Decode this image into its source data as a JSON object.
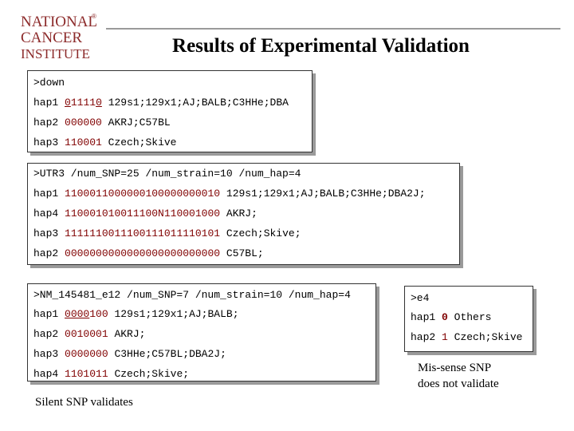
{
  "logo": {
    "lines": [
      "NATIONAL",
      "CANCER",
      "INSTITUTE"
    ],
    "registered": "®"
  },
  "title": "Results of Experimental Validation",
  "box1": {
    "header": ">down",
    "rows": [
      {
        "hap": "hap1",
        "pre": "",
        "under": "0",
        "mid": "1111",
        "under2": "0",
        "post": "",
        "strains": "129s1;129x1;AJ;BALB;C3HHe;DBA"
      },
      {
        "hap": "hap2",
        "pre": "000000",
        "under": "",
        "mid": "",
        "under2": "",
        "post": "",
        "strains": "AKRJ;C57BL"
      },
      {
        "hap": "hap3",
        "pre": "110001",
        "under": "",
        "mid": "",
        "under2": "",
        "post": "",
        "strains": "Czech;Skive"
      }
    ]
  },
  "box2": {
    "header": ">UTR3 /num_SNP=25 /num_strain=10 /num_hap=4",
    "rows": [
      {
        "hap": "hap1",
        "seq": "1100011000000100000000010",
        "strains": "129s1;129x1;AJ;BALB;C3HHe;DBA2J;"
      },
      {
        "hap": "hap4",
        "seq": "110001010011100N110001000",
        "strains": "AKRJ;"
      },
      {
        "hap": "hap3",
        "seq": "1111110011100111011110101",
        "strains": "Czech;Skive;"
      },
      {
        "hap": "hap2",
        "seq": "0000000000000000000000000",
        "strains": "C57BL;"
      }
    ]
  },
  "box3": {
    "header": ">NM_145481_e12 /num_SNP=7 /num_strain=10 /num_hap=4",
    "rows": [
      {
        "hap": "hap1",
        "pre": "",
        "under": "0000",
        "post": "100",
        "strains": "129s1;129x1;AJ;BALB;"
      },
      {
        "hap": "hap2",
        "pre": "0010001",
        "under": "",
        "post": "",
        "strains": "AKRJ;"
      },
      {
        "hap": "hap3",
        "pre": "0000000",
        "under": "",
        "post": "",
        "strains": "C3HHe;C57BL;DBA2J;"
      },
      {
        "hap": "hap4",
        "pre": "1101011",
        "under": "",
        "post": "",
        "strains": "Czech;Skive;"
      }
    ]
  },
  "box4": {
    "header": ">e4",
    "rows": [
      {
        "hap": "hap1",
        "seq": "0",
        "strains": "Others"
      },
      {
        "hap": "hap2",
        "seq": "1",
        "strains": "Czech;Skive"
      }
    ]
  },
  "notes": {
    "silent": "Silent SNP validates",
    "missense_1": "Mis-sense SNP",
    "missense_2": "does not validate"
  },
  "colors": {
    "logo": "#8c2a2a",
    "sequence": "#800000",
    "shadow": "#9a9a9a",
    "line": "#9a9a9a"
  }
}
